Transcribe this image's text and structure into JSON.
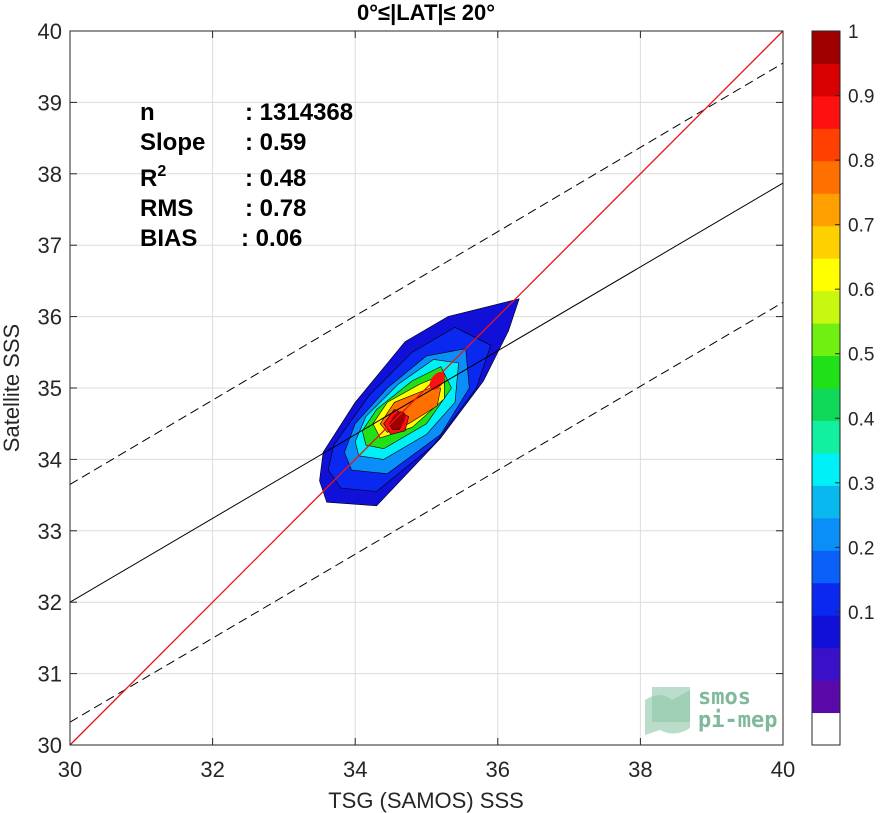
{
  "chart_data": {
    "type": "heatmap",
    "title": "0°≤|LAT|≤ 20°",
    "xlabel": "TSG (SAMOS) SSS",
    "ylabel": "Satellite SSS",
    "xlim": [
      30,
      40
    ],
    "ylim": [
      30,
      40
    ],
    "xticks": [
      "30",
      "32",
      "34",
      "36",
      "38",
      "40"
    ],
    "yticks": [
      "30",
      "31",
      "32",
      "33",
      "34",
      "35",
      "36",
      "37",
      "38",
      "39",
      "40"
    ],
    "grid": true,
    "stats": [
      {
        "label": "n",
        "sep": ": ",
        "value": "1314368"
      },
      {
        "label": "Slope",
        "sep": ": ",
        "value": "0.59"
      },
      {
        "label": "R",
        "sup": "2",
        "sep": ": ",
        "value": "0.48"
      },
      {
        "label": "RMS",
        "sep": ": ",
        "value": "0.78"
      },
      {
        "label": "BIAS",
        "sep": ": ",
        "value": "0.06"
      }
    ],
    "lines": {
      "identity": {
        "x": [
          30,
          40
        ],
        "y": [
          30,
          40
        ],
        "color": "#e8141c"
      },
      "regression": {
        "x": [
          30,
          40
        ],
        "y": [
          32.0,
          37.87
        ],
        "color": "#000000"
      },
      "upper_bound": {
        "x": [
          30,
          40
        ],
        "y": [
          33.65,
          39.55
        ],
        "color": "#000000",
        "style": "dashed"
      },
      "lower_bound": {
        "x": [
          30,
          40
        ],
        "y": [
          30.32,
          36.2
        ],
        "color": "#000000",
        "style": "dashed"
      }
    },
    "density_peaks": [
      {
        "x": 34.6,
        "y": 34.55,
        "value": 1.0
      },
      {
        "x": 35.15,
        "y": 35.1,
        "value": 0.85
      }
    ],
    "colorbar": {
      "ticks": [
        "0.1",
        "0.2",
        "0.3",
        "0.4",
        "0.5",
        "0.6",
        "0.7",
        "0.8",
        "0.9",
        "1"
      ],
      "colors": [
        "#ffffff",
        "#5a0aa8",
        "#3a10c8",
        "#1010d8",
        "#0a28f0",
        "#0a60f8",
        "#0a8ef8",
        "#0ab8f0",
        "#00f0f8",
        "#10f0a0",
        "#10d858",
        "#20e018",
        "#70f010",
        "#c8f810",
        "#ffff00",
        "#ffd000",
        "#ffa000",
        "#ff7000",
        "#ff4000",
        "#ff1010",
        "#d80000",
        "#a00000"
      ]
    },
    "logo": {
      "line1": "smos",
      "line2": "pi-mep"
    }
  }
}
